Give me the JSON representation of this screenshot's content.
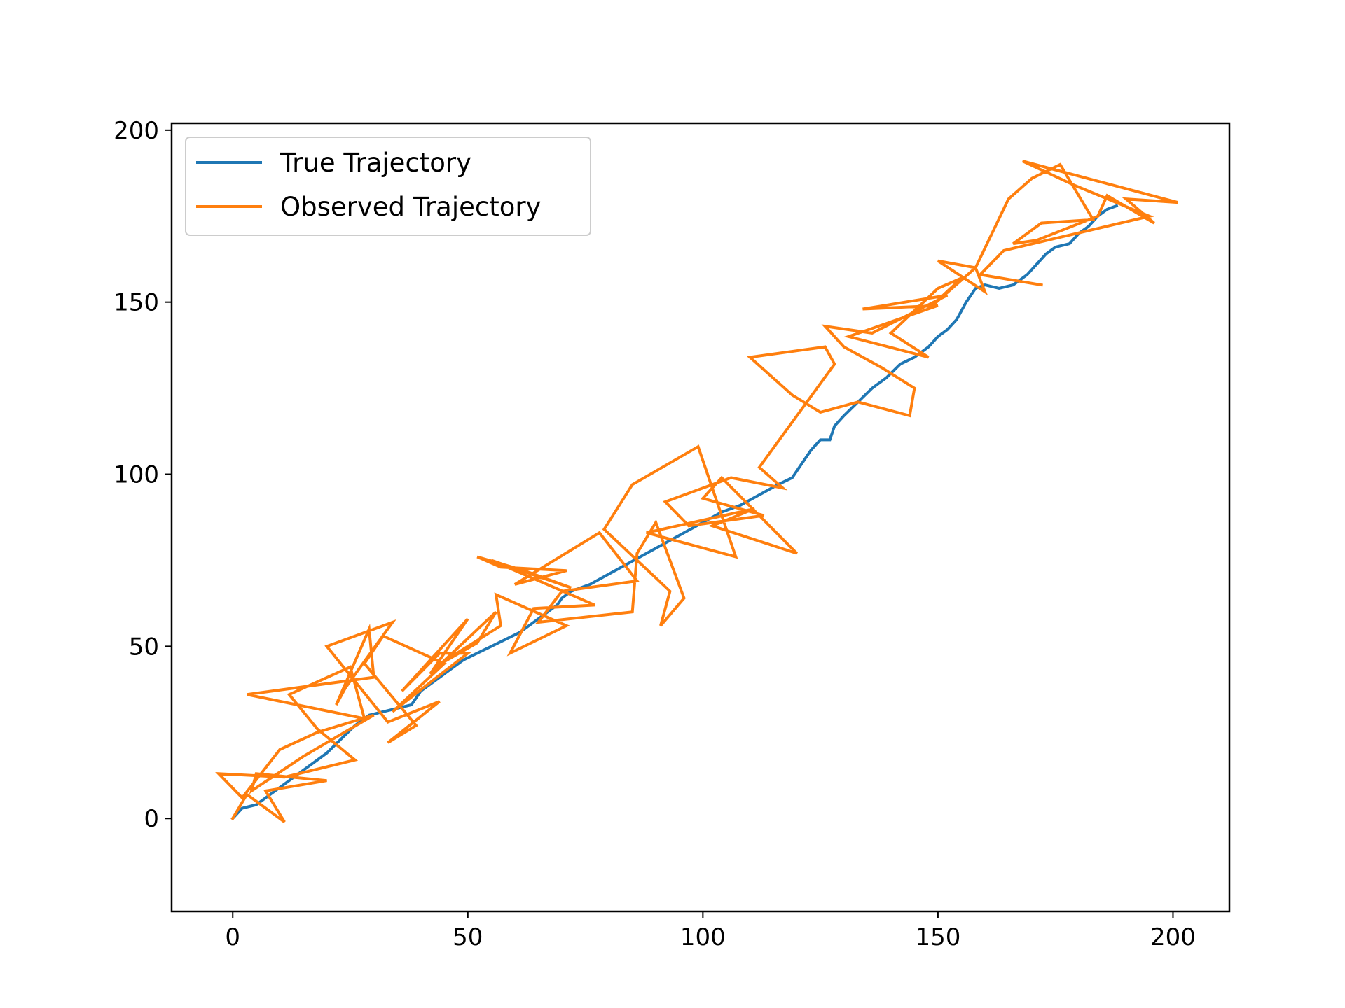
{
  "chart_data": {
    "type": "line",
    "title": "",
    "xlabel": "",
    "ylabel": "",
    "xlim": [
      -13,
      212
    ],
    "ylim": [
      -27,
      202
    ],
    "xticks": [
      0,
      50,
      100,
      150,
      200
    ],
    "yticks": [
      0,
      50,
      100,
      150,
      200
    ],
    "grid": false,
    "legend_position": "upper-left",
    "series": [
      {
        "name": "True Trajectory",
        "color": "#1f77b4",
        "x": [
          0,
          2,
          5,
          8,
          11,
          14,
          17,
          20,
          23,
          26,
          29,
          32,
          35,
          38,
          40,
          43,
          46,
          49,
          52,
          55,
          58,
          61,
          64,
          67,
          69,
          70,
          72,
          76,
          80,
          84,
          88,
          92,
          96,
          100,
          104,
          108,
          112,
          116,
          119,
          121,
          123,
          125,
          127,
          128,
          130,
          133,
          136,
          139,
          142,
          145,
          148,
          150,
          152,
          154,
          156,
          158,
          160,
          163,
          166,
          169,
          171,
          173,
          175,
          178,
          180,
          182,
          184,
          186,
          188
        ],
        "y": [
          0,
          3,
          4,
          7,
          10,
          13,
          16,
          19,
          23,
          27,
          30,
          31,
          32,
          33,
          37,
          40,
          43,
          46,
          48,
          50,
          52,
          54,
          57,
          60,
          62,
          64,
          66,
          68,
          71,
          74,
          77,
          80,
          83,
          86,
          89,
          91,
          94,
          97,
          99,
          103,
          107,
          110,
          110,
          114,
          117,
          121,
          125,
          128,
          132,
          134,
          137,
          140,
          142,
          145,
          150,
          154,
          155,
          154,
          155,
          158,
          161,
          164,
          166,
          167,
          170,
          172,
          175,
          177,
          178
        ]
      },
      {
        "name": "Observed Trajectory",
        "color": "#ff7f0e",
        "x": [
          0,
          3,
          9,
          11,
          7,
          20,
          5,
          4,
          15,
          30,
          18,
          10,
          2,
          -3,
          11,
          26,
          18,
          12,
          25,
          28,
          3,
          30,
          29,
          22,
          24,
          34,
          20,
          33,
          44,
          33,
          39,
          28,
          32,
          45,
          34,
          50,
          44,
          36,
          50,
          42,
          56,
          52,
          43,
          57,
          56,
          71,
          59,
          64,
          77,
          55,
          72,
          68,
          62,
          52,
          57,
          71,
          60,
          78,
          86,
          70,
          65,
          85,
          86,
          90,
          96,
          91,
          93,
          79,
          85,
          99,
          107,
          88,
          111,
          102,
          120,
          104,
          100,
          113,
          97,
          92,
          106,
          117,
          112,
          128,
          126,
          110,
          119,
          125,
          133,
          144,
          145,
          138,
          130,
          126,
          136,
          152,
          134,
          150,
          131,
          148,
          140,
          150,
          155,
          148,
          158,
          160,
          150,
          158,
          165,
          170,
          176,
          183,
          172,
          166,
          171,
          184,
          186,
          196,
          190,
          201,
          168,
          179,
          195,
          164,
          159,
          172
        ],
        "y": [
          0,
          7,
          1,
          -1,
          8,
          11,
          13,
          8,
          18,
          30,
          25,
          20,
          6,
          13,
          12,
          17,
          26,
          36,
          44,
          29,
          36,
          41,
          55,
          33,
          38,
          57,
          50,
          28,
          34,
          22,
          27,
          45,
          53,
          45,
          31,
          48,
          48,
          37,
          58,
          42,
          60,
          51,
          44,
          56,
          65,
          56,
          48,
          61,
          62,
          75,
          67,
          69,
          72,
          76,
          73,
          72,
          68,
          83,
          69,
          66,
          57,
          60,
          77,
          86,
          64,
          56,
          66,
          84,
          97,
          108,
          76,
          83,
          90,
          85,
          77,
          99,
          93,
          88,
          85,
          92,
          99,
          96,
          102,
          132,
          137,
          134,
          123,
          118,
          121,
          117,
          125,
          131,
          137,
          143,
          141,
          152,
          148,
          149,
          140,
          134,
          141,
          154,
          157,
          148,
          160,
          153,
          162,
          160,
          180,
          186,
          190,
          174,
          173,
          167,
          168,
          175,
          181,
          173,
          180,
          179,
          191,
          184,
          175,
          165,
          158,
          155
        ]
      }
    ]
  }
}
